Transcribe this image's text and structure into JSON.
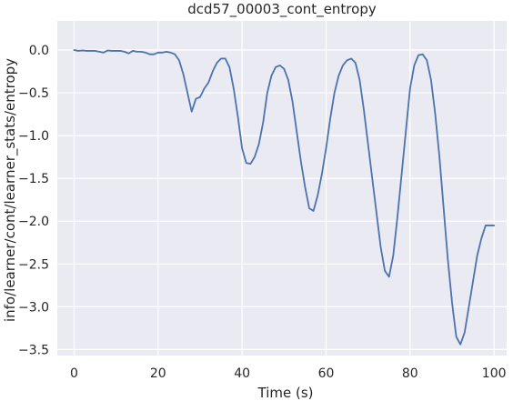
{
  "chart_data": {
    "type": "line",
    "title": "dcd57_00003_cont_entropy",
    "xlabel": "Time (s)",
    "ylabel": "info/learner/cont/learner_stats/entropy",
    "xlim": [
      -4,
      103
    ],
    "ylim": [
      -3.57,
      0.34
    ],
    "xticks": [
      0,
      20,
      40,
      60,
      80,
      100
    ],
    "yticks": [
      0.0,
      -0.5,
      -1.0,
      -1.5,
      -2.0,
      -2.5,
      -3.0,
      -3.5
    ],
    "xtick_labels": [
      "0",
      "20",
      "40",
      "60",
      "80",
      "100"
    ],
    "ytick_labels": [
      "0.0",
      "−0.5",
      "−1.0",
      "−1.5",
      "−2.0",
      "−2.5",
      "−3.0",
      "−3.5"
    ],
    "grid": true,
    "background": "#eaeaf2",
    "series": [
      {
        "color": "#4c72b0",
        "x": [
          0,
          1,
          2,
          3,
          4,
          5,
          6,
          7,
          8,
          9,
          10,
          11,
          12,
          13,
          14,
          15,
          16,
          17,
          18,
          19,
          20,
          21,
          22,
          23,
          24,
          25,
          26,
          27,
          28,
          29,
          30,
          31,
          32,
          33,
          34,
          35,
          36,
          37,
          38,
          39,
          40,
          41,
          42,
          43,
          44,
          45,
          46,
          47,
          48,
          49,
          50,
          51,
          52,
          53,
          54,
          55,
          56,
          57,
          58,
          59,
          60,
          61,
          62,
          63,
          64,
          65,
          66,
          67,
          68,
          69,
          70,
          71,
          72,
          73,
          74,
          75,
          76,
          77,
          78,
          79,
          80,
          81,
          82,
          83,
          84,
          85,
          86,
          87,
          88,
          89,
          90,
          91,
          92,
          93,
          94,
          95,
          96,
          97,
          98,
          99,
          100
        ],
        "y": [
          0.0,
          -0.01,
          -0.005,
          -0.01,
          -0.01,
          -0.01,
          -0.02,
          -0.03,
          -0.005,
          -0.01,
          -0.01,
          -0.01,
          -0.02,
          -0.04,
          -0.01,
          -0.02,
          -0.02,
          -0.03,
          -0.05,
          -0.05,
          -0.03,
          -0.03,
          -0.02,
          -0.03,
          -0.05,
          -0.12,
          -0.28,
          -0.5,
          -0.72,
          -0.57,
          -0.55,
          -0.45,
          -0.38,
          -0.25,
          -0.15,
          -0.1,
          -0.1,
          -0.2,
          -0.45,
          -0.78,
          -1.15,
          -1.32,
          -1.33,
          -1.25,
          -1.1,
          -0.85,
          -0.5,
          -0.3,
          -0.2,
          -0.18,
          -0.22,
          -0.35,
          -0.6,
          -0.95,
          -1.3,
          -1.6,
          -1.85,
          -1.88,
          -1.7,
          -1.45,
          -1.15,
          -0.8,
          -0.5,
          -0.3,
          -0.18,
          -0.12,
          -0.1,
          -0.15,
          -0.35,
          -0.7,
          -1.1,
          -1.5,
          -1.9,
          -2.3,
          -2.58,
          -2.65,
          -2.4,
          -1.95,
          -1.45,
          -0.95,
          -0.45,
          -0.18,
          -0.06,
          -0.05,
          -0.12,
          -0.35,
          -0.75,
          -1.25,
          -1.85,
          -2.45,
          -2.95,
          -3.35,
          -3.44,
          -3.3,
          -3.0,
          -2.7,
          -2.4,
          -2.2,
          -2.05,
          -2.05,
          -2.05
        ]
      }
    ]
  }
}
